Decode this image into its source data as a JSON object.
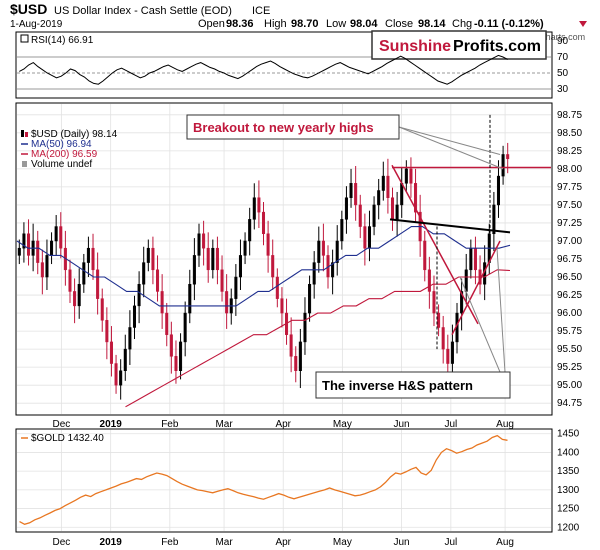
{
  "header": {
    "symbol": "$USD",
    "description": "US Dollar Index - Cash Settle (EOD)",
    "exchange": "ICE",
    "date": "1-Aug-2019",
    "open_label": "Open",
    "open": "98.36",
    "high_label": "High",
    "high": "98.70",
    "low_label": "Low",
    "low": "98.04",
    "close_label": "Close",
    "close": "98.14",
    "chg_label": "Chg",
    "chg": "-0.11 (-0.12%)",
    "watermark": "@ StockCharts.com"
  },
  "brand": {
    "part1": "Sunshine",
    "part2": "Profits.com",
    "color1": "#c0183c",
    "color2": "#000000"
  },
  "colors": {
    "up": "#000000",
    "down": "#c0183c",
    "ma50": "#1f2f8f",
    "ma200": "#c0183c",
    "gold": "#e87722",
    "annotation": "#c0183c",
    "neckline": "#000000"
  },
  "chart_data": [
    {
      "type": "line",
      "panel": "RSI",
      "legend": "RSI(14) 66.91",
      "y_ticks": [
        30,
        50,
        70,
        90
      ],
      "ylim": [
        20,
        100
      ],
      "reference_lines": [
        30,
        50,
        70
      ],
      "values": [
        52,
        55,
        60,
        63,
        58,
        54,
        50,
        47,
        44,
        46,
        50,
        55,
        53,
        48,
        45,
        40,
        37,
        36,
        40,
        45,
        50,
        54,
        56,
        53,
        50,
        47,
        44,
        46,
        50,
        52,
        55,
        58,
        60,
        57,
        54,
        52,
        55,
        58,
        61,
        63,
        60,
        57,
        55,
        52,
        50,
        47,
        45,
        43,
        46,
        50,
        54,
        58,
        61,
        63,
        65,
        62,
        58,
        55,
        52,
        49,
        47,
        45,
        44,
        46,
        49,
        52,
        55,
        58,
        61,
        63,
        60,
        57,
        55,
        53,
        51,
        49,
        52,
        55,
        58,
        62,
        65,
        68,
        71,
        68,
        64,
        60,
        56,
        52,
        48,
        44,
        40,
        38,
        36,
        39,
        43,
        47,
        50,
        53,
        56,
        60,
        63,
        66,
        69,
        72,
        70,
        67
      ]
    },
    {
      "type": "candlestick",
      "panel": "price",
      "legend": [
        "$USD (Daily) 98.14",
        "MA(50) 96.94",
        "MA(200) 96.59",
        "Volume undef"
      ],
      "y_ticks": [
        94.75,
        95.0,
        95.25,
        95.5,
        95.75,
        96.0,
        96.25,
        96.5,
        96.75,
        97.0,
        97.25,
        97.5,
        97.75,
        98.0,
        98.25,
        98.5,
        98.75
      ],
      "ylim": [
        94.6,
        98.9
      ],
      "x_ticks": [
        "Dec",
        "2019",
        "Feb",
        "Mar",
        "Apr",
        "May",
        "Jun",
        "Jul",
        "Aug"
      ],
      "close": [
        96.9,
        97.1,
        96.8,
        97.0,
        96.7,
        96.5,
        96.8,
        97.0,
        97.2,
        96.9,
        96.6,
        96.3,
        96.1,
        96.4,
        96.7,
        96.9,
        96.6,
        96.2,
        95.9,
        95.6,
        95.3,
        95.0,
        95.2,
        95.5,
        95.8,
        96.1,
        96.4,
        96.7,
        96.9,
        96.6,
        96.3,
        96.0,
        95.7,
        95.4,
        95.2,
        95.6,
        96.0,
        96.4,
        96.8,
        97.1,
        96.9,
        96.6,
        96.9,
        96.6,
        96.3,
        96.0,
        96.2,
        96.5,
        96.8,
        97.0,
        97.3,
        97.6,
        97.4,
        97.1,
        96.8,
        96.5,
        96.2,
        96.0,
        95.7,
        95.4,
        95.2,
        95.6,
        96.0,
        96.4,
        96.7,
        97.0,
        96.8,
        96.5,
        96.7,
        97.0,
        97.3,
        97.6,
        97.8,
        97.5,
        97.2,
        96.9,
        97.2,
        97.5,
        97.7,
        97.9,
        97.6,
        97.3,
        97.5,
        97.8,
        98.0,
        97.8,
        97.4,
        97.0,
        96.6,
        96.3,
        96.0,
        95.8,
        95.5,
        95.3,
        95.6,
        96.0,
        96.3,
        96.6,
        96.9,
        96.6,
        96.4,
        96.7,
        97.1,
        97.5,
        97.9,
        98.2,
        98.14
      ],
      "annotations": [
        {
          "text": "Breakout to new yearly highs",
          "ref_price": 98.02
        },
        {
          "text": "The inverse H&S pattern"
        }
      ],
      "series": [
        {
          "name": "MA(50)",
          "values": [
            97.0,
            96.9,
            96.9,
            96.8,
            96.8,
            96.7,
            96.6,
            96.5,
            96.5,
            96.4,
            96.3,
            96.3,
            96.2,
            96.1,
            96.1,
            96.1,
            96.1,
            96.1,
            96.1,
            96.1,
            96.1,
            96.2,
            96.3,
            96.3,
            96.4,
            96.5,
            96.6,
            96.6,
            96.6,
            96.7,
            96.8,
            96.8,
            96.9,
            96.9,
            97.0,
            97.1,
            97.2,
            97.2,
            97.1,
            97.1,
            97.0,
            96.9,
            96.9,
            96.9,
            96.9,
            96.94
          ]
        },
        {
          "name": "MA(200)",
          "values": [
            94.7,
            94.8,
            94.9,
            95.0,
            95.1,
            95.2,
            95.3,
            95.4,
            95.5,
            95.6,
            95.7,
            95.7,
            95.8,
            95.9,
            95.9,
            96.0,
            96.0,
            96.1,
            96.1,
            96.2,
            96.2,
            96.3,
            96.3,
            96.3,
            96.4,
            96.4,
            96.5,
            96.5,
            96.5,
            96.6,
            96.59
          ]
        }
      ]
    },
    {
      "type": "line",
      "panel": "gold",
      "legend": "$GOLD 1432.40",
      "y_ticks": [
        1200,
        1250,
        1300,
        1350,
        1400,
        1450
      ],
      "ylim": [
        1190,
        1460
      ],
      "x_ticks": [
        "Dec",
        "2019",
        "Feb",
        "Mar",
        "Apr",
        "May",
        "Jun",
        "Jul",
        "Aug"
      ],
      "values": [
        1215,
        1208,
        1212,
        1220,
        1225,
        1232,
        1238,
        1245,
        1250,
        1258,
        1265,
        1272,
        1280,
        1286,
        1282,
        1290,
        1295,
        1300,
        1305,
        1310,
        1316,
        1320,
        1325,
        1330,
        1328,
        1335,
        1340,
        1345,
        1342,
        1338,
        1330,
        1322,
        1315,
        1310,
        1305,
        1300,
        1298,
        1295,
        1292,
        1296,
        1300,
        1303,
        1298,
        1292,
        1288,
        1285,
        1282,
        1278,
        1275,
        1280,
        1285,
        1290,
        1286,
        1280,
        1276,
        1280,
        1284,
        1288,
        1292,
        1296,
        1300,
        1305,
        1300,
        1296,
        1292,
        1288,
        1284,
        1286,
        1290,
        1295,
        1300,
        1308,
        1320,
        1335,
        1345,
        1342,
        1348,
        1355,
        1360,
        1345,
        1340,
        1352,
        1380,
        1400,
        1410,
        1405,
        1398,
        1402,
        1408,
        1412,
        1420,
        1425,
        1430,
        1440,
        1445,
        1435,
        1432.4
      ]
    }
  ]
}
